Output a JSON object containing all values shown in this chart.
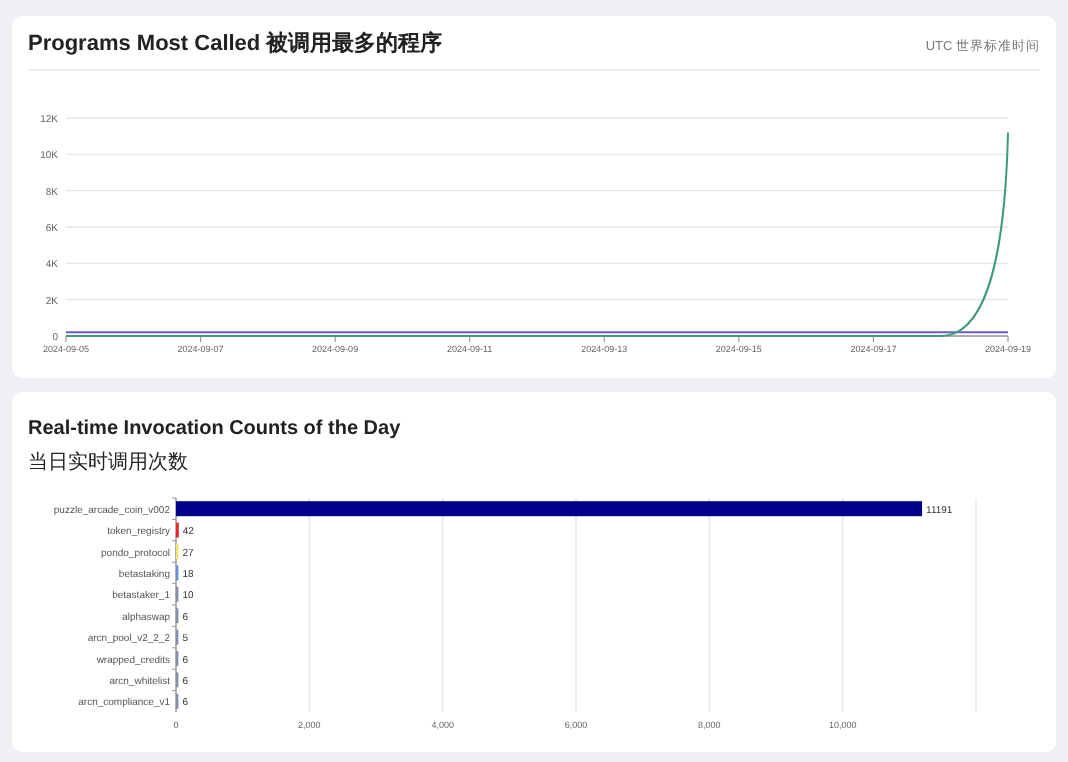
{
  "chart_data": [
    {
      "type": "line",
      "title": "Programs Most Called 被调用最多的程序",
      "annotations": [
        "UTC 世界标准时间"
      ],
      "x": [
        "2024-09-05",
        "2024-09-06",
        "2024-09-07",
        "2024-09-08",
        "2024-09-09",
        "2024-09-10",
        "2024-09-11",
        "2024-09-12",
        "2024-09-13",
        "2024-09-14",
        "2024-09-15",
        "2024-09-16",
        "2024-09-17",
        "2024-09-18",
        "2024-09-19"
      ],
      "series": [
        {
          "color": "#6a5acd",
          "values": [
            200,
            200,
            200,
            200,
            200,
            200,
            200,
            200,
            200,
            200,
            200,
            200,
            200,
            200,
            200
          ]
        },
        {
          "color": "#3f9c76",
          "values": [
            0,
            0,
            0,
            0,
            0,
            0,
            0,
            0,
            0,
            0,
            0,
            0,
            0,
            0,
            11200
          ]
        }
      ],
      "xlim": [
        "2024-09-05",
        "2024-09-19"
      ],
      "xticks": [
        {
          "value": "2024-09-05",
          "label": "2024-09-05"
        },
        {
          "value": "2024-09-07",
          "label": "2024-09-07"
        },
        {
          "value": "2024-09-09",
          "label": "2024-09-09"
        },
        {
          "value": "2024-09-11",
          "label": "2024-09-11"
        },
        {
          "value": "2024-09-13",
          "label": "2024-09-13"
        },
        {
          "value": "2024-09-15",
          "label": "2024-09-15"
        },
        {
          "value": "2024-09-17",
          "label": "2024-09-17"
        },
        {
          "value": "2024-09-19",
          "label": "2024-09-19"
        }
      ],
      "ylim": [
        0,
        12000
      ],
      "yticks": [
        0,
        {
          "value": 2000,
          "label": "2K"
        },
        {
          "value": 4000,
          "label": "4K"
        },
        {
          "value": 6000,
          "label": "6K"
        },
        {
          "value": 8000,
          "label": "8K"
        },
        {
          "value": 10000,
          "label": "10K"
        },
        {
          "value": 12000,
          "label": "12K"
        }
      ],
      "grid": "y"
    },
    {
      "type": "bar",
      "orientation": "horizontal",
      "title": "Real-time Invocation Counts of the Day",
      "subtitle": "当日实时调用次数",
      "categories": [
        "puzzle_arcade_coin_v002",
        "token_registry",
        "pondo_protocol",
        "betastaking",
        "betastaker_1",
        "alphaswap",
        "arcn_pool_v2_2_2",
        "wrapped_credits",
        "arcn_whitelist",
        "arcn_compliance_v1"
      ],
      "values": [
        11191,
        42,
        27,
        18,
        10,
        6,
        5,
        6,
        6,
        6
      ],
      "colors": [
        "#00008b",
        "#e02b2b",
        "#f2e56b",
        "#6b8fd1",
        "#8a8fa8",
        "#8a8fa8",
        "#8a8fa8",
        "#8a8fa8",
        "#8a8fa8",
        "#8a8fa8"
      ],
      "xlim": [
        0,
        12000
      ],
      "xticks": [
        0,
        {
          "value": 2000,
          "label": "2,000"
        },
        {
          "value": 4000,
          "label": "4,000"
        },
        {
          "value": 6000,
          "label": "6,000"
        },
        {
          "value": 8000,
          "label": "8,000"
        },
        {
          "value": 10000,
          "label": "10,000"
        },
        {
          "value": 12000,
          "label": null
        }
      ],
      "grid": "x",
      "data_labels": true
    }
  ]
}
